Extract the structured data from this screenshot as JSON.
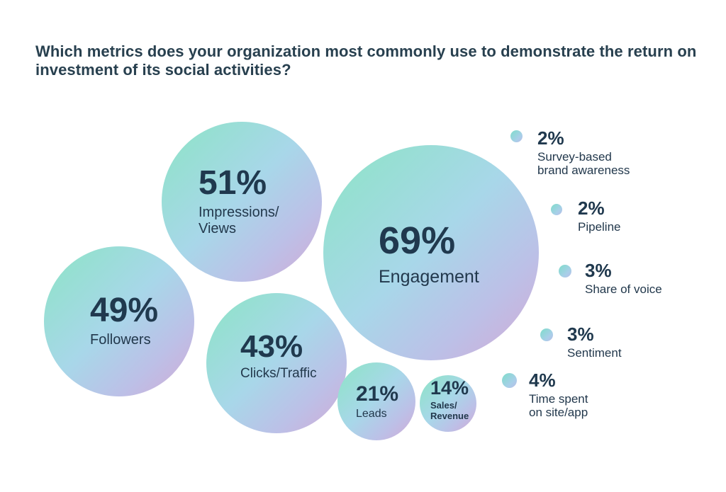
{
  "title": {
    "text": "Which metrics does your organization most commonly use to demonstrate the return on investment of its social activities?",
    "display": "Which metrics does your organization most commonly use to demonstrate the return on\ninvestment of its social activities?"
  },
  "colors": {
    "background": "#ffffff",
    "text": "#20394e",
    "title_text": "#28404f",
    "bubble_gradient": [
      "#8ce4c5",
      "#a8d7e9",
      "#bcc0e7",
      "#d2aad5"
    ],
    "dot_gradient": [
      "#7eddca",
      "#a8cfe8",
      "#b9bce7"
    ]
  },
  "chart_data": {
    "type": "bubble",
    "title": "Which metrics does your organization most commonly use to demonstrate the return on investment of its social activities?",
    "unit": "%",
    "legend_position": "none",
    "grid": false,
    "items": [
      {
        "label": "Engagement",
        "value": 69
      },
      {
        "label": "Impressions/Views",
        "value": 51
      },
      {
        "label": "Followers",
        "value": 49
      },
      {
        "label": "Clicks/Traffic",
        "value": 43
      },
      {
        "label": "Leads",
        "value": 21
      },
      {
        "label": "Sales/Revenue",
        "value": 14
      },
      {
        "label": "Time spent on site/app",
        "value": 4
      },
      {
        "label": "Sentiment",
        "value": 3
      },
      {
        "label": "Share of voice",
        "value": 3
      },
      {
        "label": "Pipeline",
        "value": 2
      },
      {
        "label": "Survey-based brand awareness",
        "value": 2
      }
    ]
  },
  "bubbles": {
    "engagement": {
      "pct": "69%",
      "label": "Engagement"
    },
    "impressions": {
      "pct": "51%",
      "label": "Impressions/\nViews"
    },
    "followers": {
      "pct": "49%",
      "label": "Followers"
    },
    "clicks": {
      "pct": "43%",
      "label": "Clicks/Traffic"
    },
    "leads": {
      "pct": "21%",
      "label": "Leads"
    },
    "sales": {
      "pct": "14%",
      "label": "Sales/\nRevenue"
    }
  },
  "annotations": {
    "survey": {
      "pct": "2%",
      "label": "Survey-based\nbrand awareness"
    },
    "pipeline": {
      "pct": "2%",
      "label": "Pipeline"
    },
    "share": {
      "pct": "3%",
      "label": "Share of voice"
    },
    "sentiment": {
      "pct": "3%",
      "label": "Sentiment"
    },
    "time": {
      "pct": "4%",
      "label": "Time spent\non site/app"
    }
  }
}
